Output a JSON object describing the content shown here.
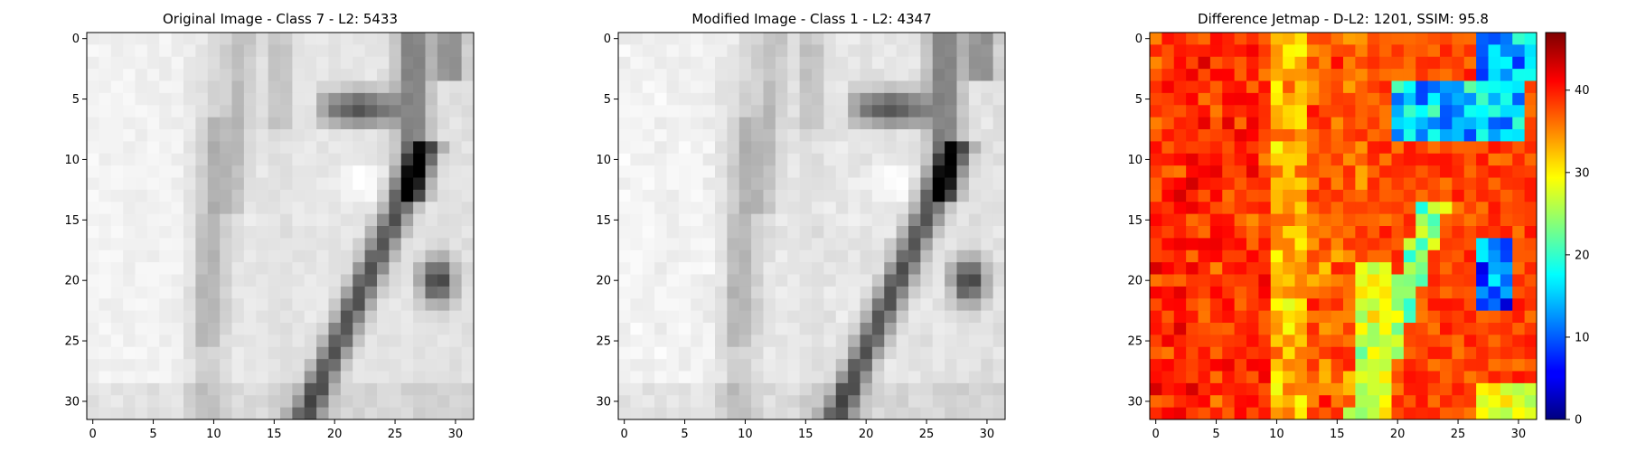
{
  "chart_data": [
    {
      "type": "heatmap",
      "title": "Original Image - Class 7 - L2: 5433",
      "title_color": "#000000",
      "colormap": "gray",
      "grid": false,
      "x_ticks": [
        "0",
        "5",
        "10",
        "15",
        "20",
        "25",
        "30"
      ],
      "y_ticks": [
        "0",
        "5",
        "10",
        "15",
        "20",
        "25",
        "30"
      ],
      "xlim": [
        -0.5,
        31.5
      ],
      "ylim": [
        31.5,
        -0.5
      ],
      "image_size": [
        32,
        32
      ]
    },
    {
      "type": "heatmap",
      "title": "Modified Image - Class 1 - L2: 4347",
      "title_color": "#ff0000",
      "colormap": "gray",
      "grid": false,
      "x_ticks": [
        "0",
        "5",
        "10",
        "15",
        "20",
        "25",
        "30"
      ],
      "y_ticks": [
        "0",
        "5",
        "10",
        "15",
        "20",
        "25",
        "30"
      ],
      "xlim": [
        -0.5,
        31.5
      ],
      "ylim": [
        31.5,
        -0.5
      ],
      "image_size": [
        32,
        32
      ]
    },
    {
      "type": "heatmap",
      "title": "Difference Jetmap - D-L2: 1201, SSIM: 95.8",
      "title_color": "#000000",
      "colormap": "jet",
      "grid": false,
      "x_ticks": [
        "0",
        "5",
        "10",
        "15",
        "20",
        "25",
        "30"
      ],
      "y_ticks": [
        "0",
        "5",
        "10",
        "15",
        "20",
        "25",
        "30"
      ],
      "xlim": [
        -0.5,
        31.5
      ],
      "ylim": [
        31.5,
        -0.5
      ],
      "image_size": [
        32,
        32
      ],
      "colorbar": {
        "range": [
          0,
          47
        ],
        "ticks": [
          "0",
          "10",
          "20",
          "30",
          "40"
        ],
        "tick_values": [
          0,
          10,
          20,
          30,
          40
        ]
      }
    }
  ]
}
